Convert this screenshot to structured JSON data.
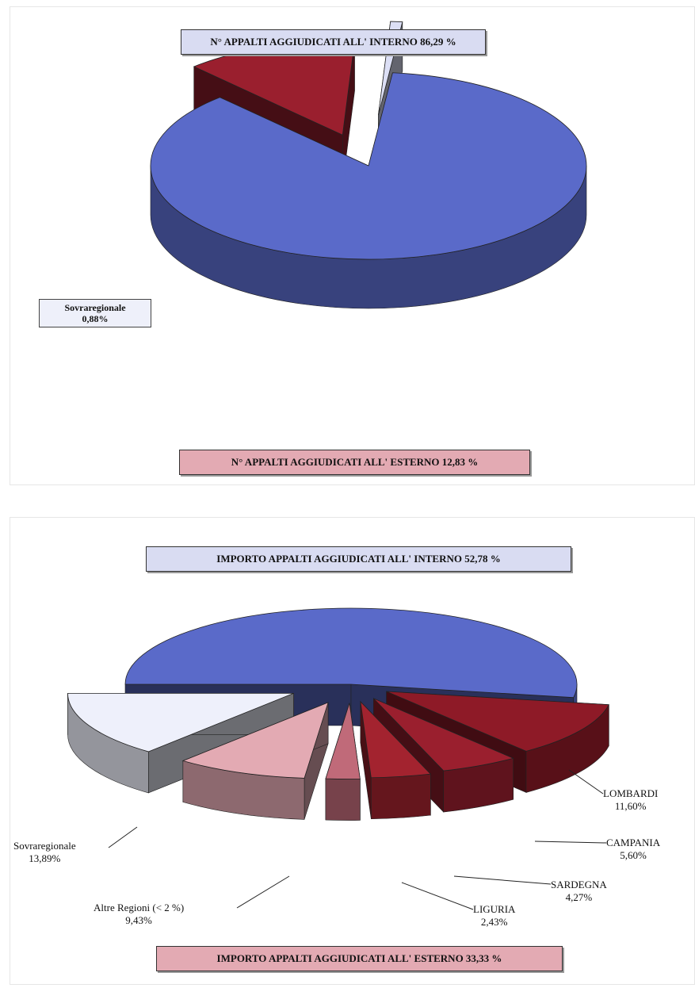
{
  "chart_data": [
    {
      "type": "pie",
      "variant": "3d-exploded",
      "header_label": "N° APPALTI AGGIUDICATI ALL' INTERNO 86,29 %",
      "footer_label": "N° APPALTI AGGIUDICATI ALL' ESTERNO 12,83 %",
      "slices": [
        {
          "name": "N° APPALTI AGGIUDICATI ALL' INTERNO",
          "value": 86.29,
          "color": "#5a6ac9"
        },
        {
          "name": "N° APPALTI AGGIUDICATI ALL' ESTERNO",
          "value": 12.83,
          "color": "#9a1f2e"
        },
        {
          "name": "Sovraregionale",
          "value": 0.88,
          "display": "0,88%",
          "color": "#dcdff5"
        }
      ]
    },
    {
      "type": "pie",
      "variant": "3d-exploded",
      "header_label": "IMPORTO APPALTI AGGIUDICATI ALL' INTERNO 52,78 %",
      "footer_label": "IMPORTO APPALTI AGGIUDICATI ALL' ESTERNO 33,33 %",
      "slices": [
        {
          "name": "IMPORTO APPALTI AGGIUDICATI ALL' INTERNO",
          "value": 52.78,
          "color": "#5a6ac9"
        },
        {
          "name": "LOMBARDIA",
          "display_name": "LOMBARDI",
          "value": 11.6,
          "display": "11,60%",
          "color": "#8e1a27"
        },
        {
          "name": "CAMPANIA",
          "value": 5.6,
          "display": "5,60%",
          "color": "#9a1f2e"
        },
        {
          "name": "SARDEGNA",
          "value": 4.27,
          "display": "4,27%",
          "color": "#a3232f"
        },
        {
          "name": "LIGURIA",
          "value": 2.43,
          "display": "2,43%",
          "color": "#c06a79"
        },
        {
          "name": "Altre Regioni (< 2 %)",
          "value": 9.43,
          "display": "9,43%",
          "color": "#e3aab3"
        },
        {
          "name": "Sovraregionale",
          "value": 13.89,
          "display": "13,89%",
          "color": "#eef0fb"
        }
      ]
    }
  ]
}
